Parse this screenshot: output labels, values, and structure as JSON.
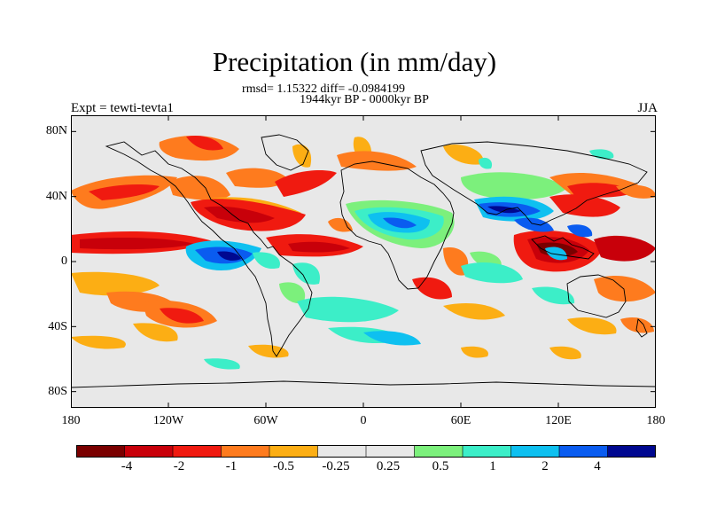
{
  "title": "Precipitation (in mm/day)",
  "stats_line": "rmsd= 1.15322 diff= -0.0984199",
  "period_line": "1944kyr BP - 0000kyr BP",
  "experiment_label": "Expt = tewti-tevta1",
  "season_label": "JJA",
  "map": {
    "lat_tick_labels": [
      "80N",
      "40N",
      "0",
      "40S",
      "80S"
    ],
    "lon_tick_labels": [
      "180",
      "120W",
      "60W",
      "0",
      "60E",
      "120E",
      "180"
    ]
  },
  "colorbar": {
    "colors": [
      "#7a0000",
      "#c8000a",
      "#f01a10",
      "#fe7b1e",
      "#fcae14",
      "#e8e8e8",
      "#e8e8e8",
      "#7cf07c",
      "#3ceec8",
      "#0ec0f0",
      "#0a5cf0",
      "#000890"
    ],
    "labels": [
      "-4",
      "-2",
      "-1",
      "-0.5",
      "-0.25",
      "0.25",
      "0.5",
      "1",
      "2",
      "4"
    ]
  },
  "colors": {
    "ocean_neutral": "#e8e8e8",
    "coast": "#000000"
  }
}
